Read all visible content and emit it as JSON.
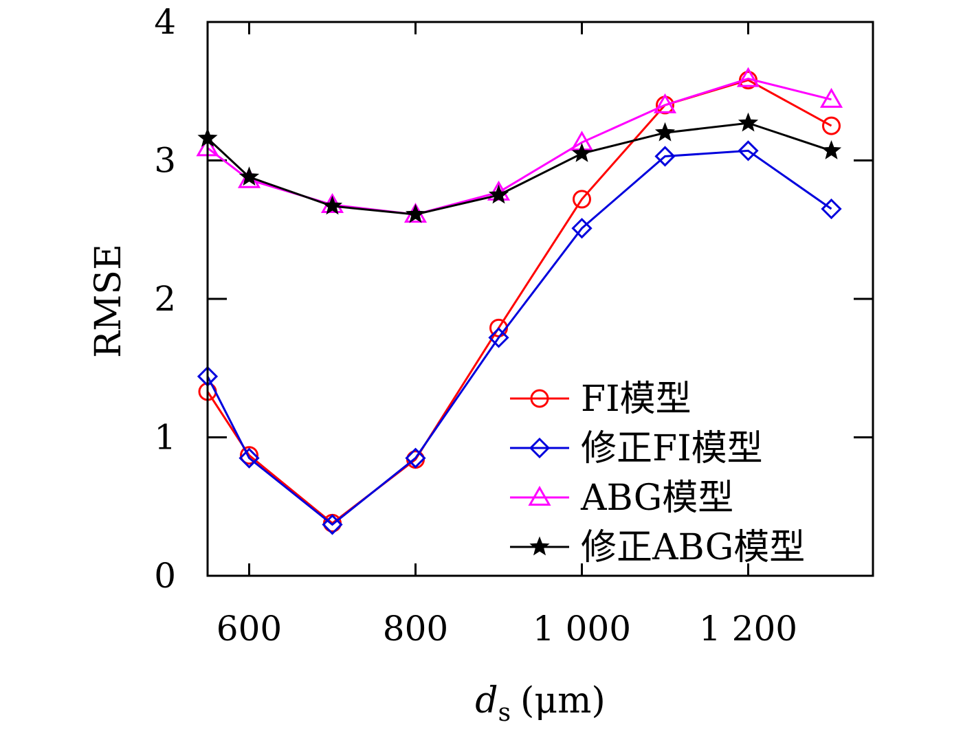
{
  "chart_data": {
    "type": "line",
    "xlabel_main": "d",
    "xlabel_sub": "s",
    "xlabel_unit": "(μm)",
    "ylabel": "RMSE",
    "xlim": [
      550,
      1350
    ],
    "ylim": [
      0,
      4
    ],
    "x_ticks": [
      {
        "value": 600,
        "label": "600"
      },
      {
        "value": 800,
        "label": "800"
      },
      {
        "value": 1000,
        "label": "1 000"
      },
      {
        "value": 1200,
        "label": "1 200"
      }
    ],
    "y_ticks": [
      {
        "value": 0,
        "label": "0"
      },
      {
        "value": 1,
        "label": "1"
      },
      {
        "value": 2,
        "label": "2"
      },
      {
        "value": 3,
        "label": "3"
      },
      {
        "value": 4,
        "label": "4"
      }
    ],
    "x": [
      550,
      600,
      700,
      800,
      900,
      1000,
      1100,
      1200,
      1300
    ],
    "series": [
      {
        "name": "FI模型",
        "color": "#ff0000",
        "marker": "circle",
        "values": [
          1.33,
          0.87,
          0.38,
          0.84,
          1.79,
          2.72,
          3.4,
          3.58,
          3.25
        ]
      },
      {
        "name": "修正FI模型",
        "color": "#0000dd",
        "marker": "diamond",
        "values": [
          1.44,
          0.85,
          0.37,
          0.85,
          1.72,
          2.51,
          3.03,
          3.07,
          2.65
        ]
      },
      {
        "name": "ABG模型",
        "color": "#ff00ff",
        "marker": "triangle",
        "values": [
          3.09,
          2.86,
          2.68,
          2.61,
          2.77,
          3.13,
          3.4,
          3.59,
          3.44
        ]
      },
      {
        "name": "修正ABG模型",
        "color": "#000000",
        "marker": "star",
        "values": [
          3.16,
          2.88,
          2.67,
          2.61,
          2.75,
          3.05,
          3.2,
          3.27,
          3.07
        ]
      }
    ],
    "legend_position": "lower-right",
    "grid": false
  }
}
